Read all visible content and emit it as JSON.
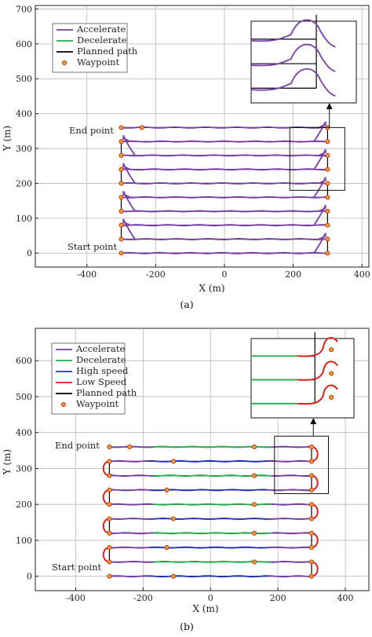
{
  "colors": {
    "accelerate": "#7a3ea8",
    "decelerate": "#22b04a",
    "high_speed": "#2233bb",
    "low_speed": "#e0201c",
    "planned_path": "#000000",
    "waypoint_fill": "#f0a030",
    "waypoint_edge": "#c03010",
    "grid": "#b8b8b8"
  },
  "chart_data": [
    {
      "type": "line",
      "panel": "(a)",
      "caption": "(a)",
      "xlabel": "X (m)",
      "ylabel": "Y (m)",
      "xlim": [
        -550,
        420
      ],
      "ylim": [
        -40,
        710
      ],
      "xticks": [
        -400,
        -200,
        0,
        200,
        400
      ],
      "yticks": [
        0,
        100,
        200,
        300,
        400,
        500,
        600,
        700
      ],
      "grid": true,
      "legend_position": "top-left",
      "legend": [
        "Accelerate",
        "Decelerate",
        "Planned path",
        "Waypoint"
      ],
      "annotations": [
        "End point",
        "Start point"
      ],
      "lane_y": [
        0,
        40,
        80,
        120,
        160,
        200,
        240,
        280,
        320,
        360
      ],
      "x_range": [
        -300,
        300
      ],
      "waypoints": [
        [
          -300,
          0
        ],
        [
          300,
          0
        ],
        [
          300,
          40
        ],
        [
          -300,
          40
        ],
        [
          -300,
          80
        ],
        [
          300,
          80
        ],
        [
          300,
          120
        ],
        [
          -300,
          120
        ],
        [
          -300,
          160
        ],
        [
          300,
          160
        ],
        [
          300,
          200
        ],
        [
          -300,
          200
        ],
        [
          -300,
          240
        ],
        [
          300,
          240
        ],
        [
          300,
          280
        ],
        [
          -300,
          280
        ],
        [
          -300,
          320
        ],
        [
          300,
          320
        ],
        [
          300,
          360
        ],
        [
          -300,
          360
        ],
        [
          -240,
          360
        ]
      ],
      "inset": {
        "zoom_region_x": [
          190,
          350
        ],
        "zoom_region_y": [
          180,
          360
        ]
      }
    },
    {
      "type": "line",
      "panel": "(b)",
      "caption": "(b)",
      "xlabel": "X (m)",
      "ylabel": "Y (m)",
      "xlim": [
        -520,
        470
      ],
      "ylim": [
        -40,
        690
      ],
      "xticks": [
        -400,
        -200,
        0,
        200,
        400
      ],
      "yticks": [
        0,
        100,
        200,
        300,
        400,
        500,
        600
      ],
      "grid": true,
      "legend_position": "top-left",
      "legend": [
        "Accelerate",
        "Decelerate",
        "High speed",
        "Low Speed",
        "Planned path",
        "Waypoint"
      ],
      "annotations": [
        "End point",
        "Start point"
      ],
      "lane_y": [
        0,
        40,
        80,
        120,
        160,
        200,
        240,
        280,
        320,
        360
      ],
      "x_range": [
        -300,
        300
      ],
      "mid_waypoints_x": [
        -110,
        130,
        -130,
        130
      ],
      "inset": {
        "zoom_region_x": [
          190,
          350
        ],
        "zoom_region_y": [
          230,
          390
        ]
      }
    }
  ]
}
